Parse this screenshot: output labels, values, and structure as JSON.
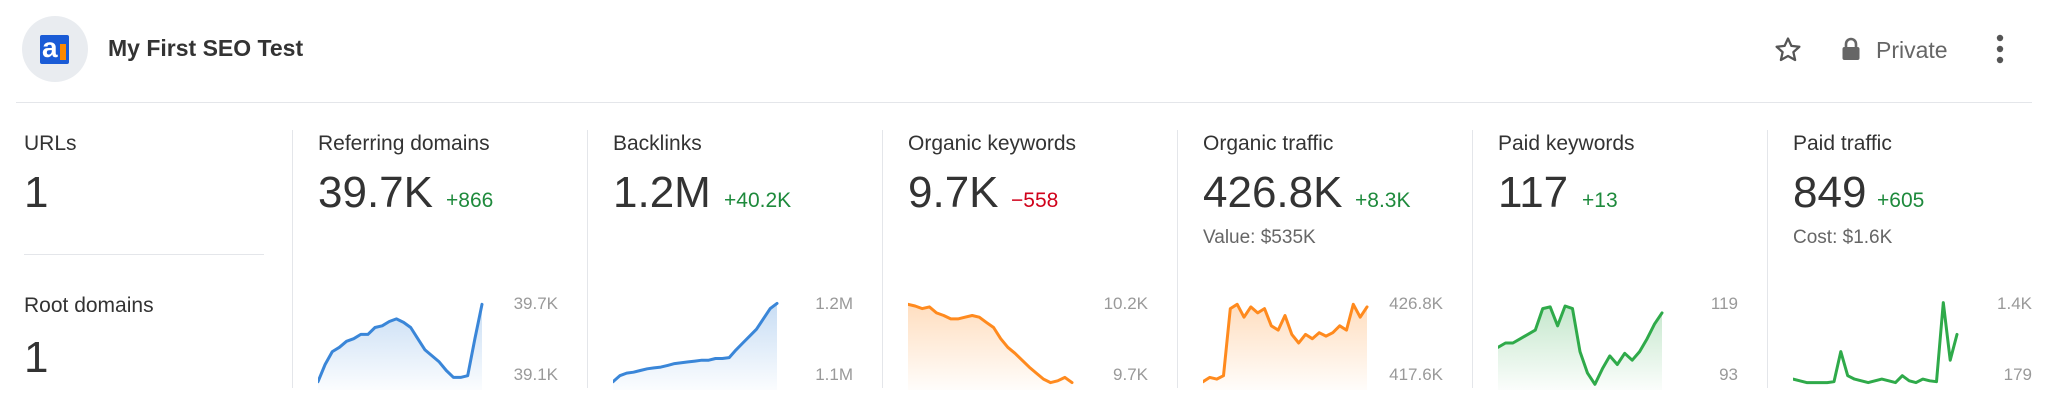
{
  "header": {
    "title": "My First SEO Test",
    "privacy_label": "Private",
    "icons": {
      "logo": "ahrefs-logo",
      "favorite": "star-icon",
      "privacy": "lock-icon",
      "more": "more-vertical-icon"
    }
  },
  "summary": {
    "urls": {
      "label": "URLs",
      "value": "1"
    },
    "root_domains": {
      "label": "Root domains",
      "value": "1"
    }
  },
  "metrics": [
    {
      "label": "Referring domains",
      "value": "39.7K",
      "delta": "+866",
      "direction": "up",
      "sub": "",
      "axis_max": "39.7K",
      "axis_min": "39.1K",
      "color": "#3a86d8",
      "fill": "#3a86d8",
      "trend": [
        0.05,
        0.25,
        0.4,
        0.45,
        0.52,
        0.55,
        0.6,
        0.6,
        0.68,
        0.7,
        0.75,
        0.78,
        0.74,
        0.68,
        0.55,
        0.42,
        0.35,
        0.28,
        0.18,
        0.1,
        0.1,
        0.12,
        0.55,
        0.95
      ]
    },
    {
      "label": "Backlinks",
      "value": "1.2M",
      "delta": "+40.2K",
      "direction": "up",
      "sub": "",
      "axis_max": "1.2M",
      "axis_min": "1.1M",
      "color": "#3a86d8",
      "fill": "#3a86d8",
      "trend": [
        0.05,
        0.12,
        0.15,
        0.16,
        0.18,
        0.2,
        0.21,
        0.22,
        0.24,
        0.26,
        0.27,
        0.28,
        0.29,
        0.3,
        0.3,
        0.32,
        0.32,
        0.33,
        0.42,
        0.5,
        0.58,
        0.66,
        0.78,
        0.9,
        0.96
      ]
    },
    {
      "label": "Organic keywords",
      "value": "9.7K",
      "delta": "−558",
      "direction": "down",
      "sub": "",
      "axis_max": "10.2K",
      "axis_min": "9.7K",
      "color": "#ff8a1e",
      "fill": "#ff8a1e",
      "trend": [
        0.95,
        0.93,
        0.9,
        0.92,
        0.85,
        0.82,
        0.78,
        0.78,
        0.8,
        0.82,
        0.8,
        0.74,
        0.68,
        0.55,
        0.45,
        0.38,
        0.3,
        0.22,
        0.15,
        0.08,
        0.04,
        0.06,
        0.1,
        0.04
      ]
    },
    {
      "label": "Organic traffic",
      "value": "426.8K",
      "delta": "+8.3K",
      "direction": "up",
      "sub": "Value: $535K",
      "axis_max": "426.8K",
      "axis_min": "417.6K",
      "color": "#ff8a1e",
      "fill": "#ff8a1e",
      "trend": [
        0.05,
        0.1,
        0.08,
        0.12,
        0.9,
        0.95,
        0.8,
        0.92,
        0.85,
        0.9,
        0.7,
        0.65,
        0.82,
        0.6,
        0.5,
        0.6,
        0.55,
        0.62,
        0.58,
        0.62,
        0.7,
        0.65,
        0.95,
        0.8,
        0.92
      ]
    },
    {
      "label": "Paid keywords",
      "value": "117",
      "delta": "+13",
      "direction": "up",
      "sub": "",
      "axis_max": "119",
      "axis_min": "93",
      "color": "#2faa4a",
      "fill": "#2faa4a",
      "trend": [
        0.45,
        0.5,
        0.5,
        0.55,
        0.6,
        0.65,
        0.9,
        0.92,
        0.7,
        0.93,
        0.9,
        0.4,
        0.15,
        0.02,
        0.2,
        0.35,
        0.25,
        0.38,
        0.3,
        0.4,
        0.55,
        0.72,
        0.85
      ]
    },
    {
      "label": "Paid traffic",
      "value": "849",
      "delta": "+605",
      "direction": "up",
      "sub": "Cost: $1.6K",
      "axis_max": "1.4K",
      "axis_min": "179",
      "color": "#2faa4a",
      "fill": "",
      "trend": [
        0.08,
        0.06,
        0.04,
        0.04,
        0.04,
        0.04,
        0.05,
        0.4,
        0.12,
        0.08,
        0.06,
        0.04,
        0.06,
        0.08,
        0.06,
        0.04,
        0.12,
        0.06,
        0.04,
        0.08,
        0.06,
        0.05,
        0.97,
        0.3,
        0.6
      ]
    }
  ]
}
